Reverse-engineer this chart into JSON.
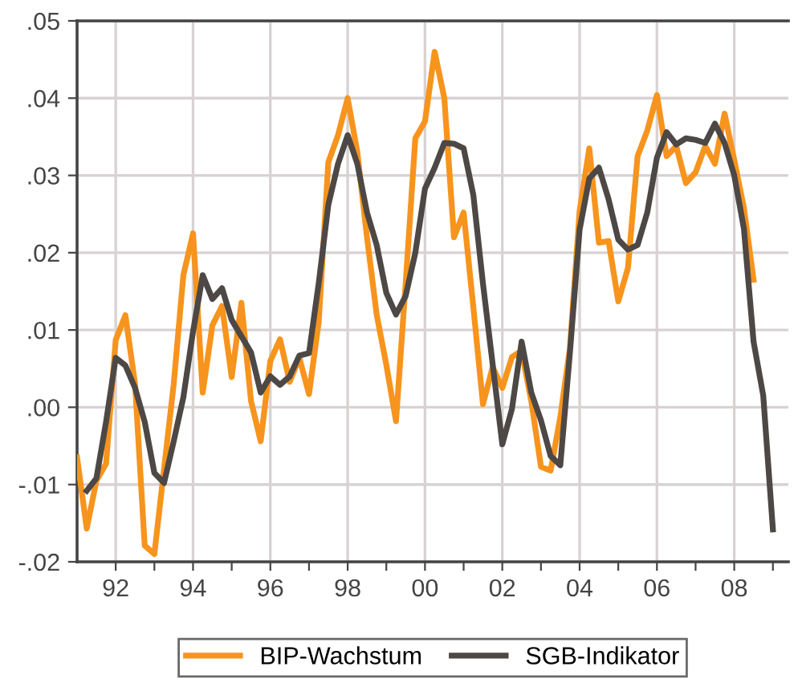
{
  "chart_data": {
    "type": "line",
    "series": [
      {
        "name": "BIP-Wachstum",
        "color": "#f7941d",
        "x": [
          1991.0,
          1991.25,
          1991.5,
          1991.75,
          1992.0,
          1992.25,
          1992.5,
          1992.75,
          1993.0,
          1993.25,
          1993.5,
          1993.75,
          1994.0,
          1994.25,
          1994.5,
          1994.75,
          1995.0,
          1995.25,
          1995.5,
          1995.75,
          1996.0,
          1996.25,
          1996.5,
          1996.75,
          1997.0,
          1997.25,
          1997.5,
          1997.75,
          1998.0,
          1998.25,
          1998.5,
          1998.75,
          1999.0,
          1999.25,
          1999.5,
          1999.75,
          2000.0,
          2000.25,
          2000.5,
          2000.75,
          2001.0,
          2001.25,
          2001.5,
          2001.75,
          2002.0,
          2002.25,
          2002.5,
          2002.75,
          2003.0,
          2003.25,
          2003.5,
          2003.75,
          2004.0,
          2004.25,
          2004.5,
          2004.75,
          2005.0,
          2005.25,
          2005.5,
          2005.75,
          2006.0,
          2006.25,
          2006.5,
          2006.75,
          2007.0,
          2007.25,
          2007.5,
          2007.75,
          2008.0,
          2008.25,
          2008.5
        ],
        "values": [
          -0.0065,
          -0.0157,
          -0.0095,
          -0.0073,
          0.0087,
          0.0119,
          0.003,
          -0.0179,
          -0.019,
          -0.008,
          0.003,
          0.0171,
          0.0225,
          0.0019,
          0.0106,
          0.0131,
          0.0039,
          0.0135,
          0.0008,
          -0.0044,
          0.006,
          0.0088,
          0.0033,
          0.0064,
          0.0017,
          0.011,
          0.0317,
          0.0352,
          0.04,
          0.033,
          0.022,
          0.012,
          0.0055,
          -0.0018,
          0.016,
          0.0348,
          0.037,
          0.046,
          0.04,
          0.022,
          0.0252,
          0.013,
          0.0004,
          0.0052,
          0.0025,
          0.0065,
          0.0073,
          0.0008,
          -0.0077,
          -0.0082,
          -0.0013,
          0.0077,
          0.0254,
          0.0335,
          0.0213,
          0.0215,
          0.0137,
          0.018,
          0.0325,
          0.0358,
          0.0404,
          0.0325,
          0.0338,
          0.029,
          0.0304,
          0.0338,
          0.0315,
          0.038,
          0.032,
          0.0258,
          0.0165
        ]
      },
      {
        "name": "SGB-Indikator",
        "color": "#4d4845",
        "x": [
          1991.25,
          1991.5,
          1991.75,
          1992.0,
          1992.25,
          1992.5,
          1992.75,
          1993.0,
          1993.25,
          1993.5,
          1993.75,
          1994.0,
          1994.25,
          1994.5,
          1994.75,
          1995.0,
          1995.25,
          1995.5,
          1995.75,
          1996.0,
          1996.25,
          1996.5,
          1996.75,
          1997.0,
          1997.25,
          1997.5,
          1997.75,
          1998.0,
          1998.25,
          1998.5,
          1998.75,
          1999.0,
          1999.25,
          1999.5,
          1999.75,
          2000.0,
          2000.25,
          2000.5,
          2000.75,
          2001.0,
          2001.25,
          2001.5,
          2001.75,
          2002.0,
          2002.25,
          2002.5,
          2002.75,
          2003.0,
          2003.25,
          2003.5,
          2003.75,
          2004.0,
          2004.25,
          2004.5,
          2004.75,
          2005.0,
          2005.25,
          2005.5,
          2005.75,
          2006.0,
          2006.25,
          2006.5,
          2006.75,
          2007.0,
          2007.25,
          2007.5,
          2007.75,
          2008.0,
          2008.25,
          2008.5,
          2008.75,
          2009.0
        ],
        "values": [
          -0.0108,
          -0.0092,
          -0.0019,
          0.0064,
          0.0054,
          0.0025,
          -0.0019,
          -0.0085,
          -0.0098,
          -0.0044,
          0.0013,
          0.0098,
          0.0171,
          0.014,
          0.0154,
          0.0113,
          0.0092,
          0.0071,
          0.0019,
          0.004,
          0.0029,
          0.004,
          0.0067,
          0.007,
          0.016,
          0.0262,
          0.0315,
          0.0352,
          0.0315,
          0.0252,
          0.021,
          0.0148,
          0.012,
          0.0144,
          0.02,
          0.0283,
          0.031,
          0.0342,
          0.0341,
          0.0335,
          0.0275,
          0.016,
          0.0056,
          -0.0048,
          -0.0002,
          0.0085,
          0.0019,
          -0.0017,
          -0.0063,
          -0.0075,
          0.0071,
          0.023,
          0.0296,
          0.031,
          0.0269,
          0.0217,
          0.0204,
          0.021,
          0.0252,
          0.0323,
          0.0356,
          0.034,
          0.0348,
          0.0346,
          0.0342,
          0.0367,
          0.0342,
          0.03,
          0.0231,
          0.0085,
          0.0015,
          -0.0158
        ]
      }
    ],
    "xlim": [
      1991,
      2009.4
    ],
    "xticks": [
      {
        "value": 1992,
        "label": "92"
      },
      {
        "value": 1993,
        "label": null
      },
      {
        "value": 1994,
        "label": "94"
      },
      {
        "value": 1995,
        "label": null
      },
      {
        "value": 1996,
        "label": "96"
      },
      {
        "value": 1997,
        "label": null
      },
      {
        "value": 1998,
        "label": "98"
      },
      {
        "value": 1999,
        "label": null
      },
      {
        "value": 2000,
        "label": "00"
      },
      {
        "value": 2001,
        "label": null
      },
      {
        "value": 2002,
        "label": "02"
      },
      {
        "value": 2003,
        "label": null
      },
      {
        "value": 2004,
        "label": "04"
      },
      {
        "value": 2005,
        "label": null
      },
      {
        "value": 2006,
        "label": "06"
      },
      {
        "value": 2007,
        "label": null
      },
      {
        "value": 2008,
        "label": "08"
      },
      {
        "value": 2009,
        "label": null
      }
    ],
    "ylim": [
      -0.02,
      0.05
    ],
    "yticks": [
      {
        "value": -0.02,
        "label": "-.02"
      },
      {
        "value": -0.01,
        "label": "-.01"
      },
      {
        "value": 0.0,
        "label": ".00"
      },
      {
        "value": 0.01,
        "label": ".01"
      },
      {
        "value": 0.02,
        "label": ".02"
      },
      {
        "value": 0.03,
        "label": ".03"
      },
      {
        "value": 0.04,
        "label": ".04"
      },
      {
        "value": 0.05,
        "label": ".05"
      }
    ],
    "grid": true,
    "legend": "bottom",
    "line_style": "solid",
    "marker": "none"
  }
}
